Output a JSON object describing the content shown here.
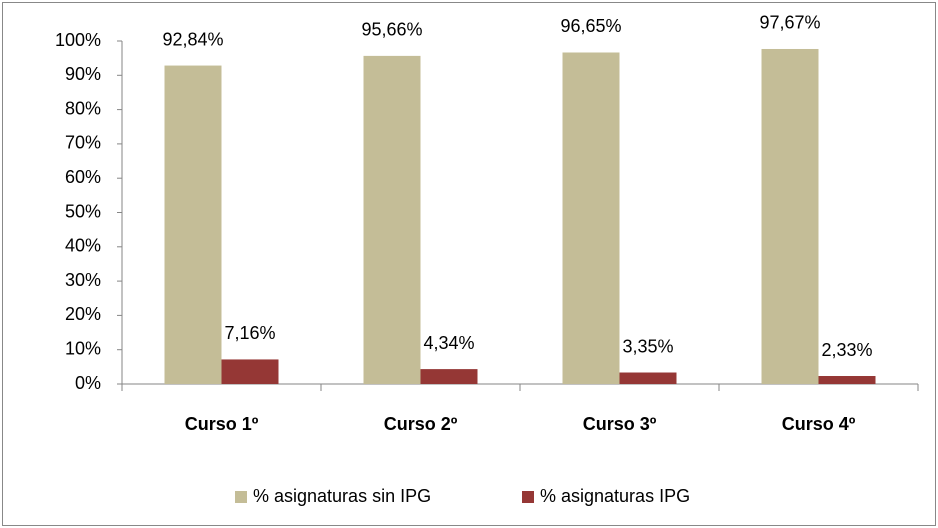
{
  "chart_data": {
    "type": "bar",
    "categories": [
      "Curso 1º",
      "Curso 2º",
      "Curso 3º",
      "Curso 4º"
    ],
    "series": [
      {
        "name": "% asignaturas sin IPG",
        "color": "#c4bd97",
        "values": [
          92.84,
          95.66,
          96.65,
          97.67
        ],
        "value_labels": [
          "92,84%",
          "95,66%",
          "96,65%",
          "97,67%"
        ]
      },
      {
        "name": "% asignaturas IPG",
        "color": "#953735",
        "values": [
          7.16,
          4.34,
          3.35,
          2.33
        ],
        "value_labels": [
          "7,16%",
          "4,34%",
          "3,35%",
          "2,33%"
        ]
      }
    ],
    "ylim": [
      0,
      100
    ],
    "yticks": [
      {
        "value": 0,
        "label": "0%"
      },
      {
        "value": 10,
        "label": "10%"
      },
      {
        "value": 20,
        "label": "20%"
      },
      {
        "value": 30,
        "label": "30%"
      },
      {
        "value": 40,
        "label": "40%"
      },
      {
        "value": 50,
        "label": "50%"
      },
      {
        "value": 60,
        "label": "60%"
      },
      {
        "value": 70,
        "label": "70%"
      },
      {
        "value": 80,
        "label": "80%"
      },
      {
        "value": 90,
        "label": "90%"
      },
      {
        "value": 100,
        "label": "100%"
      }
    ],
    "grid": false,
    "legend": "bottom"
  }
}
